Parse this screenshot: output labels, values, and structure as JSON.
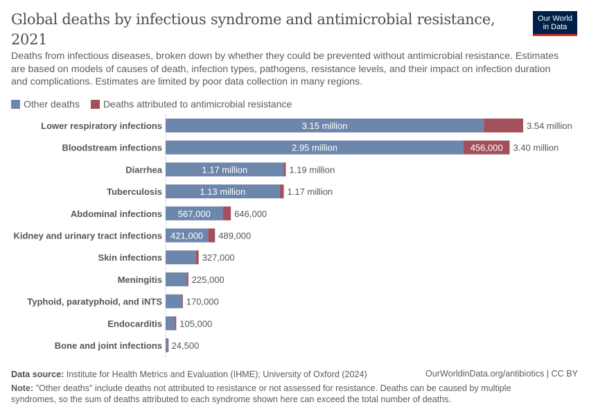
{
  "title": "Global deaths by infectious syndrome and antimicrobial resistance, 2021",
  "logo": {
    "line1": "Our World",
    "line2": "in Data"
  },
  "subtitle": "Deaths from infectious diseases, broken down by whether they could be prevented without antimicrobial resistance. Estimates are based on models of causes of death, infection types, pathogens, resistance levels, and their impact on infection duration and complications. Estimates are limited by poor data collection in many regions.",
  "footer": {
    "source_label": "Data source:",
    "source": "Institute for Health Metrics and Evaluation (IHME); University of Oxford (2024)",
    "link": "OurWorldinData.org/antibiotics | CC BY",
    "note_label": "Note:",
    "note": "\"Other deaths\" include deaths not attributed to resistance or not assessed for resistance. Deaths can be caused by multiple syndromes, so the sum of deaths attributed to each syndrome shown here can exceed the total number of deaths."
  },
  "chart_data": {
    "type": "bar",
    "orientation": "horizontal",
    "stacked": true,
    "legend_position": "top-left",
    "grid": false,
    "categories": [
      "Lower respiratory infections",
      "Bloodstream infections",
      "Diarrhea",
      "Tuberculosis",
      "Abdominal infections",
      "Kidney and urinary tract infections",
      "Skin infections",
      "Meningitis",
      "Typhoid, paratyphoid, and iNTS",
      "Endocarditis",
      "Bone and joint infections"
    ],
    "series": [
      {
        "name": "Other deaths",
        "color": "#6d87ac",
        "values": [
          3150000,
          2950000,
          1170000,
          1130000,
          567000,
          421000,
          297000,
          208000,
          164000,
          90000,
          22500
        ],
        "labels": [
          "3.15 million",
          "2.95 million",
          "1.17 million",
          "1.13 million",
          "567,000",
          "421,000",
          null,
          null,
          null,
          null,
          null
        ]
      },
      {
        "name": "Deaths attributed to antimicrobial resistance",
        "color": "#a2515c",
        "values": [
          390000,
          456000,
          20000,
          40000,
          79000,
          68000,
          30000,
          17000,
          6000,
          15000,
          2000
        ],
        "labels": [
          null,
          "456,000",
          null,
          null,
          null,
          null,
          null,
          null,
          null,
          null,
          null
        ]
      }
    ],
    "totals": [
      "3.54 million",
      "3.40 million",
      "1.19 million",
      "1.17 million",
      "646,000",
      "489,000",
      "327,000",
      "225,000",
      "170,000",
      "105,000",
      "24,500"
    ]
  }
}
